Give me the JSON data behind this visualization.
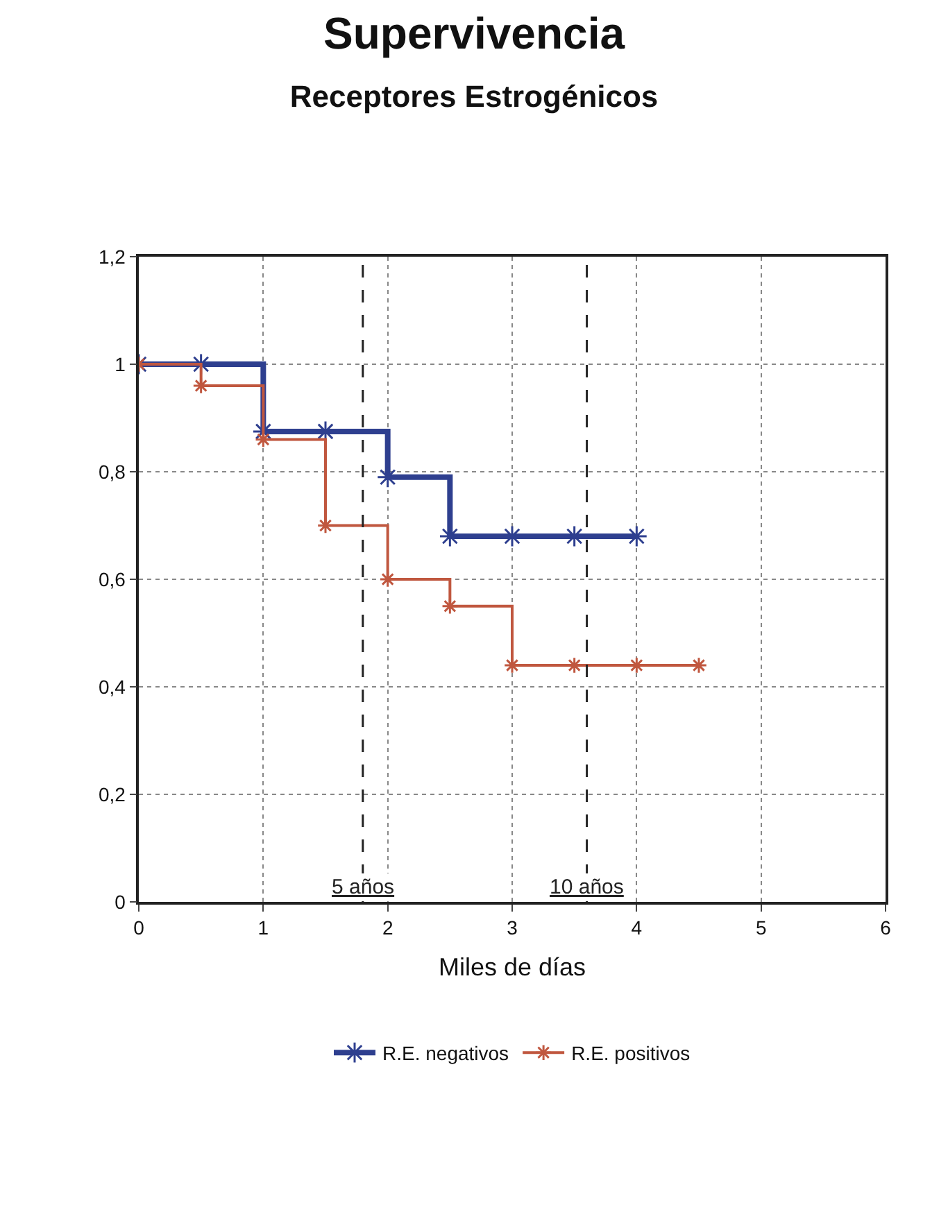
{
  "chart_data": {
    "type": "step",
    "title": "Supervivencia",
    "subtitle": "Receptores Estrogénicos",
    "xlabel": "Miles de días",
    "xlim": [
      0,
      6
    ],
    "xticks": [
      0,
      1,
      2,
      3,
      4,
      5,
      6
    ],
    "ylim": [
      0,
      1.2
    ],
    "yticks": [
      {
        "value": 0,
        "label": "0"
      },
      {
        "value": 0.2,
        "label": "0,2"
      },
      {
        "value": 0.4,
        "label": "0,4"
      },
      {
        "value": 0.6,
        "label": "0,6"
      },
      {
        "value": 0.8,
        "label": "0,8"
      },
      {
        "value": 1,
        "label": "1"
      },
      {
        "value": 1.2,
        "label": "1,2"
      }
    ],
    "grid": true,
    "legend": "bottom",
    "marker": "cross",
    "series": [
      {
        "name": "R.E. negativos",
        "color": "#2e3f8f",
        "x": [
          0,
          0.5,
          1,
          1.5,
          2,
          2.5,
          3,
          3.5,
          4
        ],
        "values": [
          1,
          1,
          0.875,
          0.875,
          0.79,
          0.68,
          0.68,
          0.68,
          0.68
        ]
      },
      {
        "name": "R.E. positivos",
        "color": "#c0573f",
        "x": [
          0,
          0.5,
          1,
          1.5,
          2,
          2.5,
          3,
          3.5,
          4,
          4.5
        ],
        "values": [
          1,
          0.96,
          0.86,
          0.7,
          0.6,
          0.55,
          0.44,
          0.44,
          0.44,
          0.44
        ]
      }
    ],
    "ref_lines": [
      {
        "axis": "x",
        "value": 1.8,
        "label": "5 años",
        "color": "#222222",
        "line_style": "dashed"
      },
      {
        "axis": "x",
        "value": 3.6,
        "label": "10 años",
        "color": "#222222",
        "line_style": "dashed"
      }
    ]
  }
}
